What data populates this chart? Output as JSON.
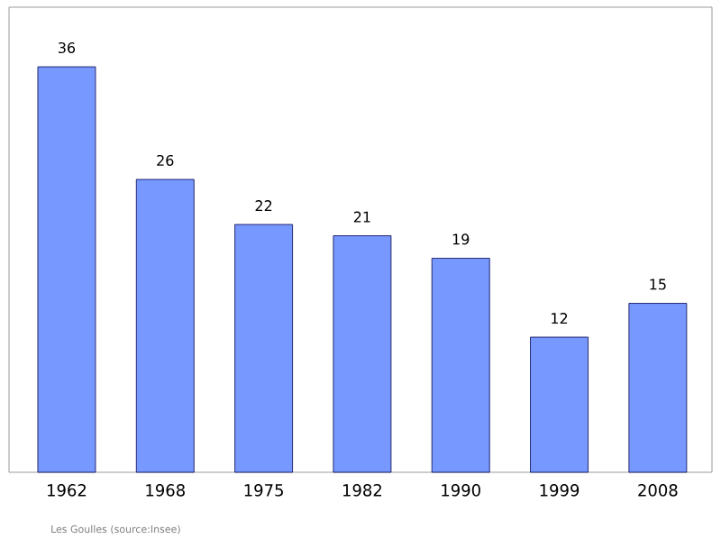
{
  "chart_data": {
    "type": "bar",
    "categories": [
      "1962",
      "1968",
      "1975",
      "1982",
      "1990",
      "1999",
      "2008"
    ],
    "values": [
      36,
      26,
      22,
      21,
      19,
      12,
      15
    ],
    "color": "#7799ff",
    "data_labels": true,
    "annotations": [
      "Les Goulles    (source:Insee)"
    ]
  }
}
